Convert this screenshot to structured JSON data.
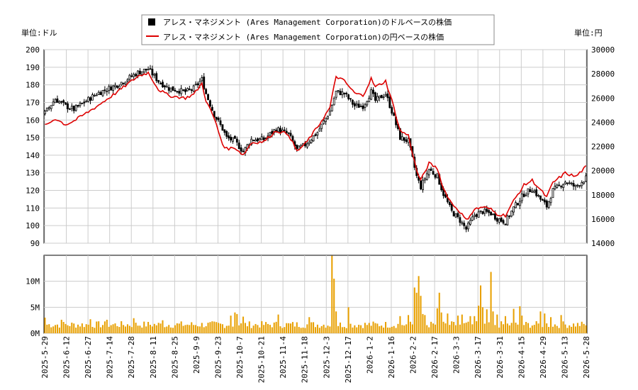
{
  "chart_data": {
    "type": "candlestick",
    "legend": {
      "placement": "top-center",
      "entries": [
        {
          "name": "アレス・マネジメント (Ares Management Corporation)のドルベースの株価",
          "color": "#000000",
          "marker": "square"
        },
        {
          "name": "アレス・マネジメント (Ares Management Corporation)の円ベースの株価",
          "color": "#dd0000",
          "marker": "line"
        }
      ]
    },
    "left_unit": "単位:ドル",
    "right_unit": "単位:円",
    "grid": true,
    "price_axis": {
      "min": 90,
      "max": 200,
      "ticks": [
        90,
        100,
        110,
        120,
        130,
        140,
        150,
        160,
        170,
        180,
        190,
        200
      ]
    },
    "yen_axis": {
      "min": 14000,
      "max": 30000,
      "ticks": [
        14000,
        16000,
        18000,
        20000,
        22000,
        24000,
        26000,
        28000,
        30000
      ]
    },
    "volume_axis": {
      "min": 0,
      "max": 15000000,
      "ticks": [
        0,
        5000000,
        10000000
      ],
      "tick_labels": [
        "0M",
        "5M",
        "10M"
      ]
    },
    "x_ticks": [
      "2025-5-29",
      "2025-6-12",
      "2025-6-27",
      "2025-7-14",
      "2025-7-28",
      "2025-8-11",
      "2025-8-25",
      "2025-9-9",
      "2025-9-23",
      "2025-10-7",
      "2025-10-21",
      "2025-11-4",
      "2025-11-18",
      "2025-12-3",
      "2025-12-17",
      "2026-1-2",
      "2026-1-16",
      "2026-2-2",
      "2026-2-17",
      "2026-3-3",
      "2026-3-17",
      "2026-3-31",
      "2026-4-15",
      "2026-4-29",
      "2026-5-13",
      "2026-5-28"
    ],
    "price_keypoints": [
      {
        "day": 0,
        "close": 164
      },
      {
        "day": 5,
        "close": 172
      },
      {
        "day": 10,
        "close": 168
      },
      {
        "day": 14,
        "close": 166
      },
      {
        "day": 25,
        "close": 175
      },
      {
        "day": 35,
        "close": 180
      },
      {
        "day": 45,
        "close": 187
      },
      {
        "day": 50,
        "close": 189
      },
      {
        "day": 55,
        "close": 182
      },
      {
        "day": 60,
        "close": 178
      },
      {
        "day": 68,
        "close": 176
      },
      {
        "day": 72,
        "close": 178
      },
      {
        "day": 76,
        "close": 183
      },
      {
        "day": 78,
        "close": 175
      },
      {
        "day": 82,
        "close": 163
      },
      {
        "day": 86,
        "close": 155
      },
      {
        "day": 88,
        "close": 150
      },
      {
        "day": 92,
        "close": 148
      },
      {
        "day": 96,
        "close": 142
      },
      {
        "day": 100,
        "close": 149
      },
      {
        "day": 106,
        "close": 149
      },
      {
        "day": 112,
        "close": 155
      },
      {
        "day": 118,
        "close": 152
      },
      {
        "day": 122,
        "close": 143
      },
      {
        "day": 126,
        "close": 146
      },
      {
        "day": 132,
        "close": 153
      },
      {
        "day": 138,
        "close": 165
      },
      {
        "day": 141,
        "close": 176
      },
      {
        "day": 145,
        "close": 175
      },
      {
        "day": 150,
        "close": 168
      },
      {
        "day": 154,
        "close": 168
      },
      {
        "day": 158,
        "close": 176
      },
      {
        "day": 160,
        "close": 171
      },
      {
        "day": 165,
        "close": 175
      },
      {
        "day": 168,
        "close": 165
      },
      {
        "day": 172,
        "close": 150
      },
      {
        "day": 176,
        "close": 148
      },
      {
        "day": 180,
        "close": 128
      },
      {
        "day": 182,
        "close": 122
      },
      {
        "day": 186,
        "close": 132
      },
      {
        "day": 190,
        "close": 128
      },
      {
        "day": 193,
        "close": 118
      },
      {
        "day": 197,
        "close": 108
      },
      {
        "day": 201,
        "close": 103
      },
      {
        "day": 204,
        "close": 98
      },
      {
        "day": 208,
        "close": 106
      },
      {
        "day": 212,
        "close": 108
      },
      {
        "day": 216,
        "close": 107
      },
      {
        "day": 219,
        "close": 104
      },
      {
        "day": 223,
        "close": 102
      },
      {
        "day": 227,
        "close": 110
      },
      {
        "day": 232,
        "close": 118
      },
      {
        "day": 236,
        "close": 121
      },
      {
        "day": 240,
        "close": 115
      },
      {
        "day": 243,
        "close": 111
      },
      {
        "day": 246,
        "close": 120
      },
      {
        "day": 252,
        "close": 125
      },
      {
        "day": 257,
        "close": 122
      },
      {
        "day": 262,
        "close": 127
      }
    ],
    "yen_keypoints": [
      {
        "day": 0,
        "yen": 23700
      },
      {
        "day": 5,
        "yen": 24300
      },
      {
        "day": 10,
        "yen": 23800
      },
      {
        "day": 14,
        "yen": 24100
      },
      {
        "day": 25,
        "yen": 25300
      },
      {
        "day": 35,
        "yen": 26500
      },
      {
        "day": 45,
        "yen": 27800
      },
      {
        "day": 50,
        "yen": 28100
      },
      {
        "day": 55,
        "yen": 26700
      },
      {
        "day": 60,
        "yen": 26200
      },
      {
        "day": 68,
        "yen": 26000
      },
      {
        "day": 72,
        "yen": 26300
      },
      {
        "day": 76,
        "yen": 27200
      },
      {
        "day": 78,
        "yen": 25800
      },
      {
        "day": 82,
        "yen": 24300
      },
      {
        "day": 86,
        "yen": 22200
      },
      {
        "day": 88,
        "yen": 21800
      },
      {
        "day": 92,
        "yen": 21900
      },
      {
        "day": 96,
        "yen": 21300
      },
      {
        "day": 100,
        "yen": 22300
      },
      {
        "day": 106,
        "yen": 22400
      },
      {
        "day": 112,
        "yen": 23300
      },
      {
        "day": 118,
        "yen": 23000
      },
      {
        "day": 122,
        "yen": 21600
      },
      {
        "day": 126,
        "yen": 22200
      },
      {
        "day": 132,
        "yen": 23600
      },
      {
        "day": 138,
        "yen": 25200
      },
      {
        "day": 141,
        "yen": 27800
      },
      {
        "day": 145,
        "yen": 27400
      },
      {
        "day": 150,
        "yen": 26400
      },
      {
        "day": 154,
        "yen": 26200
      },
      {
        "day": 158,
        "yen": 27600
      },
      {
        "day": 160,
        "yen": 26900
      },
      {
        "day": 165,
        "yen": 27400
      },
      {
        "day": 168,
        "yen": 25800
      },
      {
        "day": 172,
        "yen": 23300
      },
      {
        "day": 176,
        "yen": 22900
      },
      {
        "day": 180,
        "yen": 20000
      },
      {
        "day": 182,
        "yen": 19200
      },
      {
        "day": 186,
        "yen": 20600
      },
      {
        "day": 190,
        "yen": 20200
      },
      {
        "day": 193,
        "yen": 18500
      },
      {
        "day": 197,
        "yen": 17300
      },
      {
        "day": 201,
        "yen": 16600
      },
      {
        "day": 204,
        "yen": 15900
      },
      {
        "day": 208,
        "yen": 16800
      },
      {
        "day": 212,
        "yen": 17000
      },
      {
        "day": 216,
        "yen": 16800
      },
      {
        "day": 219,
        "yen": 16400
      },
      {
        "day": 223,
        "yen": 16300
      },
      {
        "day": 227,
        "yen": 17500
      },
      {
        "day": 232,
        "yen": 18800
      },
      {
        "day": 236,
        "yen": 19200
      },
      {
        "day": 240,
        "yen": 18400
      },
      {
        "day": 243,
        "yen": 17800
      },
      {
        "day": 246,
        "yen": 19000
      },
      {
        "day": 252,
        "yen": 19800
      },
      {
        "day": 257,
        "yen": 19500
      },
      {
        "day": 262,
        "yen": 20300
      }
    ],
    "volume_base": 1800000,
    "volume_spikes": [
      {
        "day": 0,
        "volume": 3000000
      },
      {
        "day": 8,
        "volume": 2600000
      },
      {
        "day": 22,
        "volume": 2700000
      },
      {
        "day": 30,
        "volume": 2600000
      },
      {
        "day": 43,
        "volume": 2900000
      },
      {
        "day": 57,
        "volume": 2500000
      },
      {
        "day": 90,
        "volume": 3400000
      },
      {
        "day": 92,
        "volume": 4000000
      },
      {
        "day": 93,
        "volume": 3700000
      },
      {
        "day": 96,
        "volume": 3200000
      },
      {
        "day": 113,
        "volume": 3600000
      },
      {
        "day": 128,
        "volume": 3100000
      },
      {
        "day": 139,
        "volume": 14900000
      },
      {
        "day": 140,
        "volume": 10500000
      },
      {
        "day": 141,
        "volume": 4200000
      },
      {
        "day": 147,
        "volume": 5000000
      },
      {
        "day": 172,
        "volume": 3300000
      },
      {
        "day": 176,
        "volume": 3500000
      },
      {
        "day": 179,
        "volume": 8800000
      },
      {
        "day": 180,
        "volume": 7800000
      },
      {
        "day": 181,
        "volume": 11000000
      },
      {
        "day": 182,
        "volume": 7200000
      },
      {
        "day": 183,
        "volume": 3700000
      },
      {
        "day": 184,
        "volume": 3500000
      },
      {
        "day": 190,
        "volume": 4800000
      },
      {
        "day": 191,
        "volume": 7800000
      },
      {
        "day": 192,
        "volume": 4000000
      },
      {
        "day": 195,
        "volume": 3800000
      },
      {
        "day": 200,
        "volume": 3400000
      },
      {
        "day": 202,
        "volume": 3600000
      },
      {
        "day": 206,
        "volume": 3300000
      },
      {
        "day": 208,
        "volume": 3300000
      },
      {
        "day": 210,
        "volume": 5300000
      },
      {
        "day": 211,
        "volume": 9200000
      },
      {
        "day": 212,
        "volume": 5000000
      },
      {
        "day": 214,
        "volume": 4600000
      },
      {
        "day": 216,
        "volume": 11800000
      },
      {
        "day": 217,
        "volume": 4200000
      },
      {
        "day": 219,
        "volume": 3600000
      },
      {
        "day": 223,
        "volume": 3300000
      },
      {
        "day": 227,
        "volume": 4700000
      },
      {
        "day": 230,
        "volume": 5200000
      },
      {
        "day": 231,
        "volume": 3400000
      },
      {
        "day": 240,
        "volume": 4200000
      },
      {
        "day": 242,
        "volume": 3800000
      },
      {
        "day": 245,
        "volume": 3100000
      },
      {
        "day": 250,
        "volume": 3500000
      }
    ]
  }
}
